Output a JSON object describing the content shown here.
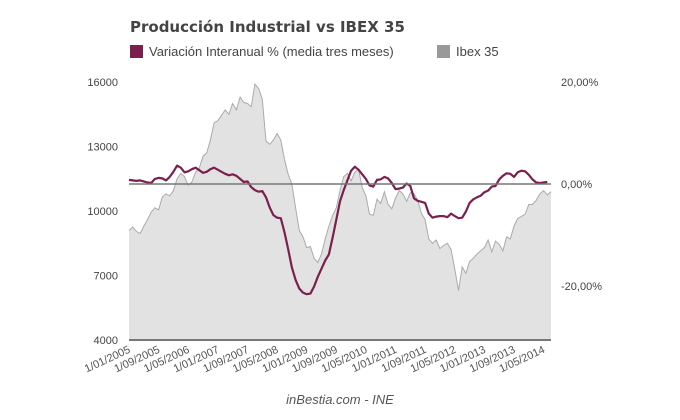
{
  "chart_data": {
    "type": "line",
    "title": "Producción Industrial vs IBEX 35",
    "xlabel": "",
    "ylabel_left": "",
    "ylabel_right": "",
    "x_start": "1/01/2005",
    "x_end": "1/06/2014",
    "x_tick_labels": [
      "1/01/2005",
      "1/09/2005",
      "1/05/2006",
      "1/01/2007",
      "1/09/2007",
      "1/05/2008",
      "1/01/2009",
      "1/09/2009",
      "1/05/2010",
      "1/01/2011",
      "1/09/2011",
      "1/05/2012",
      "1/01/2013",
      "1/09/2013",
      "1/05/2014"
    ],
    "y_left_ticks": [
      "4000",
      "7000",
      "10000",
      "13000",
      "16000"
    ],
    "y_left_values": [
      4000,
      7000,
      10000,
      13000,
      16000
    ],
    "ylim_left": [
      4000,
      16000
    ],
    "y_right_ticks": [
      "20,00%",
      "0,00%",
      "-20,00%"
    ],
    "y_right_values": [
      20,
      0,
      -20
    ],
    "ylim_right": [
      -31,
      20
    ],
    "legend_position": "top-left",
    "grid": false,
    "series": [
      {
        "name": "Variación Interanual % (media tres meses)",
        "axis": "right",
        "type": "line",
        "color": "#7b1f4e",
        "values": [
          0.8,
          0.7,
          0.6,
          0.7,
          0.5,
          0.3,
          0.2,
          1.0,
          1.2,
          1.1,
          0.7,
          1.4,
          2.4,
          3.6,
          3.2,
          2.3,
          2.5,
          2.9,
          3.2,
          2.7,
          2.2,
          2.4,
          2.9,
          3.2,
          2.8,
          2.4,
          2.0,
          1.7,
          1.9,
          1.6,
          1.0,
          0.4,
          0.5,
          -0.6,
          -1.2,
          -1.5,
          -1.4,
          -2.6,
          -4.6,
          -6.1,
          -6.6,
          -6.7,
          -9.5,
          -12.8,
          -16.4,
          -18.8,
          -20.5,
          -21.3,
          -21.6,
          -21.5,
          -20.1,
          -18.2,
          -16.6,
          -15.0,
          -13.8,
          -10.5,
          -7.0,
          -3.4,
          -1.2,
          0.7,
          2.6,
          3.4,
          2.8,
          1.9,
          1.0,
          -0.3,
          -0.5,
          0.8,
          0.9,
          1.4,
          1.1,
          0.2,
          -1.0,
          -0.9,
          -0.7,
          0.1,
          -0.4,
          -2.8,
          -3.3,
          -3.5,
          -3.7,
          -5.8,
          -6.6,
          -6.4,
          -6.3,
          -6.3,
          -6.5,
          -5.8,
          -6.3,
          -6.7,
          -6.6,
          -5.4,
          -3.7,
          -3.0,
          -2.6,
          -2.3,
          -1.6,
          -1.3,
          -0.5,
          -0.4,
          0.9,
          1.6,
          2.1,
          2.0,
          1.4,
          2.3,
          2.6,
          2.5,
          1.8,
          0.9,
          0.3,
          0.2,
          0.3,
          0.4
        ]
      },
      {
        "name": "Ibex 35",
        "axis": "left",
        "type": "area",
        "color": "#999999",
        "values": [
          9100,
          9250,
          9050,
          8950,
          9300,
          9600,
          9950,
          10150,
          10050,
          10650,
          10800,
          10700,
          10950,
          11500,
          11750,
          11600,
          11200,
          11350,
          11800,
          12000,
          12550,
          12700,
          13300,
          14100,
          14200,
          14450,
          14700,
          14500,
          15000,
          14700,
          15300,
          15050,
          15000,
          14850,
          15900,
          15700,
          15200,
          13250,
          13100,
          13300,
          13600,
          13300,
          12400,
          11700,
          11250,
          10150,
          9100,
          8800,
          8300,
          8350,
          7800,
          7600,
          8000,
          8700,
          9300,
          9800,
          10150,
          10950,
          11600,
          11750,
          11400,
          11800,
          11950,
          11100,
          10700,
          9850,
          9800,
          10550,
          10350,
          10900,
          10300,
          10100,
          10600,
          10950,
          10800,
          10450,
          10850,
          10800,
          10500,
          9900,
          9600,
          8700,
          8500,
          8650,
          8250,
          8400,
          8500,
          8200,
          7300,
          6300,
          7400,
          7100,
          7650,
          7800,
          8000,
          8150,
          8300,
          8650,
          8100,
          8600,
          8450,
          8150,
          8800,
          8700,
          9300,
          9650,
          9750,
          9850,
          10300,
          10300,
          10500,
          10800,
          10950,
          10750,
          10900
        ]
      }
    ]
  },
  "legend": {
    "items": [
      {
        "label": "Variación Interanual % (media tres meses)",
        "color": "#7b1f4e"
      },
      {
        "label": "Ibex 35",
        "color": "#999999"
      }
    ]
  },
  "source": "inBestia.com - INE"
}
